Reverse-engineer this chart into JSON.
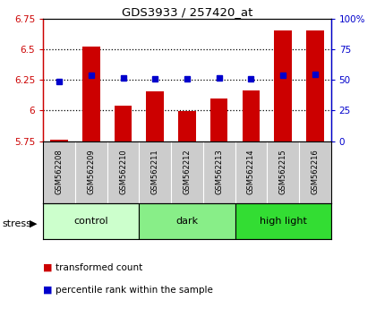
{
  "title": "GDS3933 / 257420_at",
  "samples": [
    "GSM562208",
    "GSM562209",
    "GSM562210",
    "GSM562211",
    "GSM562212",
    "GSM562213",
    "GSM562214",
    "GSM562215",
    "GSM562216"
  ],
  "transformed_counts": [
    5.762,
    6.524,
    6.04,
    6.155,
    5.993,
    6.098,
    6.162,
    6.655,
    6.655
  ],
  "percentile_ranks": [
    49,
    54,
    52,
    51,
    51,
    52,
    51,
    54,
    55
  ],
  "bar_color": "#cc0000",
  "dot_color": "#0000cc",
  "ylim_left": [
    5.75,
    6.75
  ],
  "ylim_right": [
    0,
    100
  ],
  "yticks_left": [
    5.75,
    6.0,
    6.25,
    6.5,
    6.75
  ],
  "ytick_labels_left": [
    "5.75",
    "6",
    "6.25",
    "6.5",
    "6.75"
  ],
  "yticks_right": [
    0,
    25,
    50,
    75,
    100
  ],
  "ytick_labels_right": [
    "0",
    "25",
    "50",
    "75",
    "100%"
  ],
  "groups": [
    {
      "label": "control",
      "start": 0,
      "end": 2,
      "color": "#ccffcc"
    },
    {
      "label": "dark",
      "start": 3,
      "end": 5,
      "color": "#88ee88"
    },
    {
      "label": "high light",
      "start": 6,
      "end": 8,
      "color": "#33dd33"
    }
  ],
  "stress_label": "stress",
  "legend_red_label": "transformed count",
  "legend_blue_label": "percentile rank within the sample",
  "hline_positions": [
    6.0,
    6.25,
    6.5
  ],
  "bar_bottom": 5.75,
  "bar_width": 0.55,
  "bg_color": "#ffffff",
  "sample_panel_color": "#cccccc",
  "axis_color_left": "#cc0000",
  "axis_color_right": "#0000cc"
}
